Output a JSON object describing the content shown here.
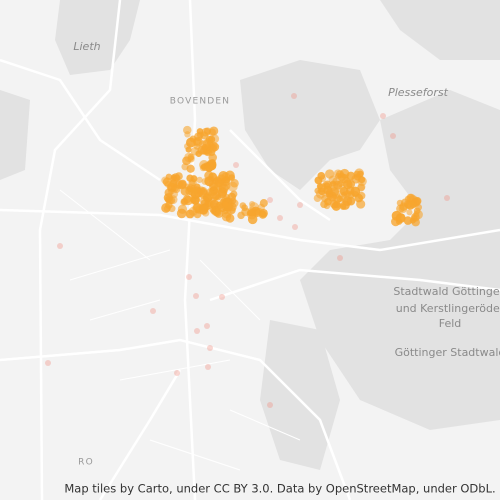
{
  "labels": {
    "lieth": "Lieth",
    "bovenden": "BOVENDEN",
    "plesseforst": "Plesseforst",
    "stadtwald": [
      "Stadtwald Göttingen",
      "und Kerstlingeröder",
      "Feld"
    ],
    "goettinger_stadtwald": "Göttinger Stadtwald",
    "bottom_left": "RO"
  },
  "attribution": "Map tiles by Carto, under CC BY 3.0. Data by OpenStreetMap, under ODbL."
}
